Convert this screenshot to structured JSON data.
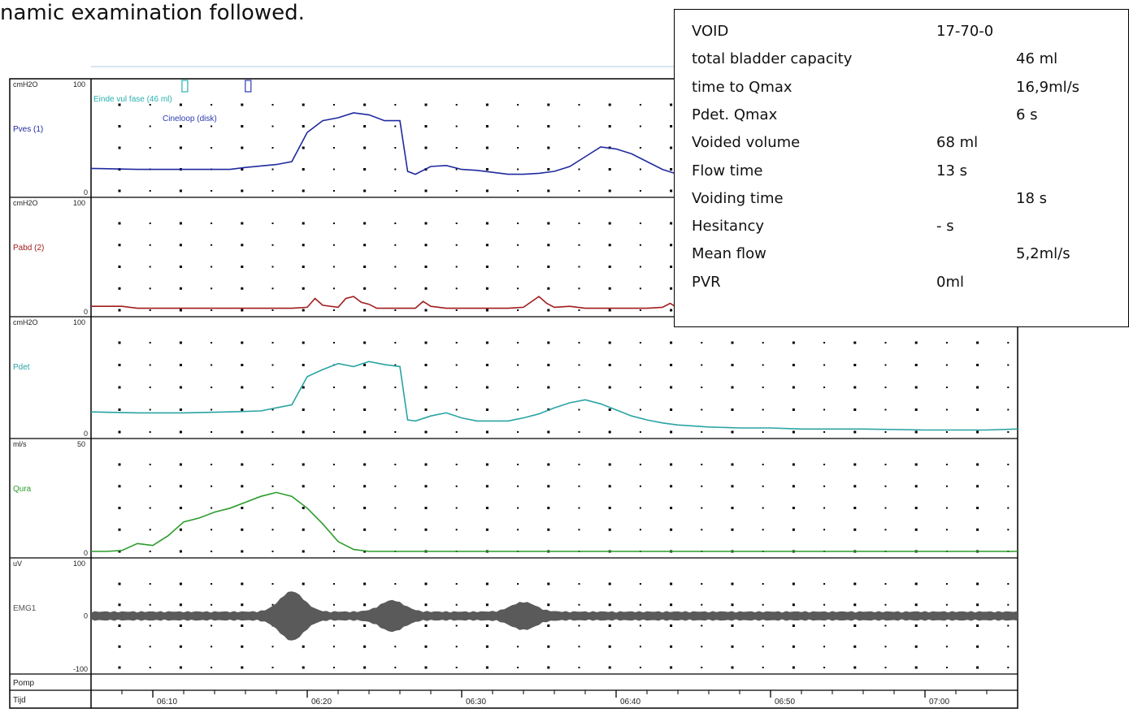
{
  "caption": "namic examination followed.",
  "summary": {
    "rows": [
      {
        "label": "VOID",
        "value": "17-70-0",
        "col": "mid"
      },
      {
        "label": "total bladder capacity",
        "value": "46 ml",
        "col": "right"
      },
      {
        "label": "time to Qmax",
        "value": "16,9ml/s",
        "col": "right"
      },
      {
        "label": "Pdet. Qmax",
        "value": "6 s",
        "col": "right"
      },
      {
        "label": "Voided volume",
        "value": "68 ml",
        "col": "mid"
      },
      {
        "label": "Flow time",
        "value": "13 s",
        "col": "mid"
      },
      {
        "label": "Voiding time",
        "value": "18 s",
        "col": "right"
      },
      {
        "label": "Hesitancy",
        "value": "- s",
        "col": "mid"
      },
      {
        "label": "Mean flow",
        "value": "5,2ml/s",
        "col": "right"
      },
      {
        "label": "PVR",
        "value": "0ml",
        "col": "mid"
      }
    ]
  },
  "chart_data": {
    "type": "line",
    "x_unit": "time (mm:ss)",
    "x_range": [
      "06:06",
      "07:06"
    ],
    "x_ticks": [
      "06:10",
      "06:20",
      "06:30",
      "06:40",
      "06:50",
      "07:00"
    ],
    "annotations": [
      {
        "text": "Einde vul fase (46 ml)",
        "t": 6.1,
        "color": "#2ab0b0"
      },
      {
        "text": "Cineloop (disk)",
        "t": 10.2,
        "color": "#2b3bb0"
      }
    ],
    "panels": [
      {
        "name": "Pves (1)",
        "unit": "cmH2O",
        "range": [
          0,
          100
        ],
        "tick_top": "100",
        "tick_bottom": "0",
        "color": "#1f2a9e",
        "series": [
          [
            0,
            23
          ],
          [
            3,
            22
          ],
          [
            6,
            22
          ],
          [
            9,
            22
          ],
          [
            10,
            24
          ],
          [
            12,
            27
          ],
          [
            13,
            30
          ],
          [
            14,
            60
          ],
          [
            15,
            72
          ],
          [
            16,
            75
          ],
          [
            17,
            80
          ],
          [
            18,
            78
          ],
          [
            19,
            72
          ],
          [
            20,
            72
          ],
          [
            20.5,
            20
          ],
          [
            21,
            17
          ],
          [
            22,
            25
          ],
          [
            23,
            26
          ],
          [
            24,
            22
          ],
          [
            25,
            21
          ],
          [
            26,
            19
          ],
          [
            27,
            17
          ],
          [
            28,
            17
          ],
          [
            29,
            18
          ],
          [
            30,
            20
          ],
          [
            31,
            25
          ],
          [
            32,
            35
          ],
          [
            33,
            45
          ],
          [
            34,
            43
          ],
          [
            35,
            38
          ],
          [
            36,
            30
          ],
          [
            37,
            22
          ],
          [
            38,
            17
          ],
          [
            39,
            13
          ],
          [
            40,
            9
          ],
          [
            41,
            7
          ],
          [
            42,
            6
          ],
          [
            44,
            5
          ],
          [
            46,
            5
          ],
          [
            48,
            5
          ],
          [
            52,
            5
          ],
          [
            56,
            5
          ],
          [
            60,
            5
          ]
        ]
      },
      {
        "name": "Pabd (2)",
        "unit": "cmH2O",
        "range": [
          0,
          100
        ],
        "tick_top": "100",
        "tick_bottom": "0",
        "color": "#a01c1c",
        "series": [
          [
            0,
            4
          ],
          [
            2,
            4
          ],
          [
            3,
            2
          ],
          [
            5,
            2
          ],
          [
            8,
            2
          ],
          [
            10,
            2
          ],
          [
            12,
            2
          ],
          [
            13,
            2
          ],
          [
            14,
            3
          ],
          [
            14.5,
            12
          ],
          [
            15,
            5
          ],
          [
            16,
            3
          ],
          [
            16.5,
            12
          ],
          [
            17,
            14
          ],
          [
            17.5,
            8
          ],
          [
            18,
            6
          ],
          [
            18.5,
            2
          ],
          [
            20,
            2
          ],
          [
            21,
            2
          ],
          [
            21.5,
            9
          ],
          [
            22,
            4
          ],
          [
            23,
            2
          ],
          [
            25,
            2
          ],
          [
            26,
            2
          ],
          [
            27,
            2
          ],
          [
            28,
            3
          ],
          [
            29,
            14
          ],
          [
            29.5,
            7
          ],
          [
            30,
            3
          ],
          [
            31,
            4
          ],
          [
            32,
            2
          ],
          [
            34,
            2
          ],
          [
            36,
            2
          ],
          [
            37,
            3
          ],
          [
            37.5,
            7
          ],
          [
            38,
            2
          ],
          [
            40,
            2
          ],
          [
            44,
            2
          ],
          [
            50,
            2
          ],
          [
            55,
            2
          ],
          [
            60,
            2
          ]
        ]
      },
      {
        "name": "Pdet",
        "unit": "cmH2O",
        "range": [
          0,
          100
        ],
        "tick_top": "100",
        "tick_bottom": "0",
        "color": "#2aa3a3",
        "series": [
          [
            0,
            20
          ],
          [
            3,
            19
          ],
          [
            6,
            19
          ],
          [
            9,
            20
          ],
          [
            11,
            21
          ],
          [
            12,
            24
          ],
          [
            13,
            27
          ],
          [
            14,
            55
          ],
          [
            15,
            62
          ],
          [
            16,
            68
          ],
          [
            17,
            65
          ],
          [
            18,
            70
          ],
          [
            19,
            67
          ],
          [
            20,
            65
          ],
          [
            20.5,
            12
          ],
          [
            21,
            11
          ],
          [
            22,
            16
          ],
          [
            23,
            19
          ],
          [
            24,
            14
          ],
          [
            25,
            11
          ],
          [
            26,
            11
          ],
          [
            27,
            11
          ],
          [
            28,
            14
          ],
          [
            29,
            18
          ],
          [
            30,
            24
          ],
          [
            31,
            29
          ],
          [
            32,
            32
          ],
          [
            33,
            28
          ],
          [
            34,
            22
          ],
          [
            35,
            16
          ],
          [
            36,
            12
          ],
          [
            37,
            9
          ],
          [
            38,
            7
          ],
          [
            39,
            6
          ],
          [
            40,
            5
          ],
          [
            42,
            4
          ],
          [
            44,
            4
          ],
          [
            46,
            3
          ],
          [
            50,
            3
          ],
          [
            54,
            2
          ],
          [
            56,
            2
          ],
          [
            58,
            2
          ],
          [
            60,
            3
          ]
        ]
      },
      {
        "name": "Qura",
        "unit": "ml/s",
        "range": [
          0,
          50
        ],
        "tick_top": "50",
        "tick_bottom": "0",
        "color": "#2b9c2b",
        "series": [
          [
            0,
            0
          ],
          [
            1,
            0
          ],
          [
            2,
            0.5
          ],
          [
            3,
            4
          ],
          [
            4,
            3
          ],
          [
            5,
            8
          ],
          [
            6,
            15
          ],
          [
            7,
            17
          ],
          [
            8,
            20
          ],
          [
            9,
            22
          ],
          [
            10,
            25
          ],
          [
            11,
            28
          ],
          [
            12,
            30
          ],
          [
            13,
            28
          ],
          [
            14,
            22
          ],
          [
            15,
            14
          ],
          [
            16,
            5
          ],
          [
            17,
            1
          ],
          [
            18,
            0
          ],
          [
            20,
            0
          ],
          [
            25,
            0
          ],
          [
            30,
            0
          ],
          [
            40,
            0
          ],
          [
            50,
            0
          ],
          [
            60,
            0
          ]
        ]
      },
      {
        "name": "EMG1",
        "unit": "uV",
        "range": [
          -100,
          100
        ],
        "tick_top": "100",
        "tick_mid": "0",
        "tick_bottom": "-100",
        "color": "#555555",
        "series": [
          [
            0,
            0
          ],
          [
            60,
            0
          ]
        ]
      },
      {
        "name": "Pomp",
        "unit": "",
        "series": []
      }
    ],
    "time_row_label": "Tijd",
    "emg_bursts": [
      {
        "t": 13,
        "amp": 25
      },
      {
        "t": 19.5,
        "amp": 14
      },
      {
        "t": 28,
        "amp": 12
      }
    ]
  }
}
